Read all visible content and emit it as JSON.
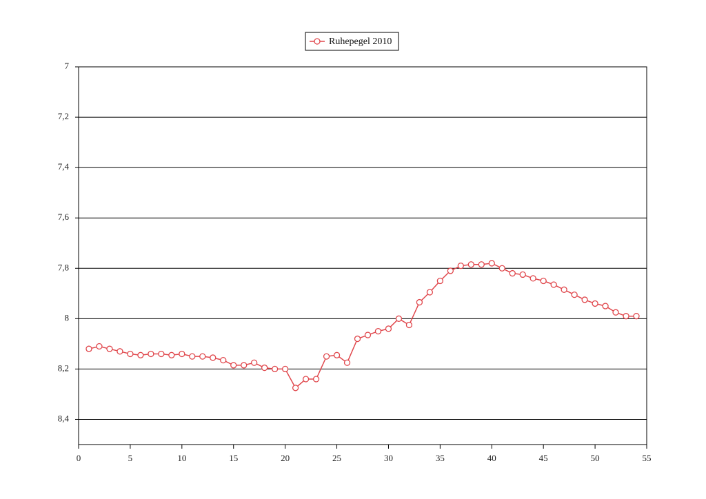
{
  "chart_data": {
    "type": "line",
    "title": "",
    "xlabel": "",
    "ylabel": "",
    "xlim": [
      0,
      55
    ],
    "ylim": [
      7,
      8.5
    ],
    "y_inverted": true,
    "grid": "horizontal",
    "legend": "top-center",
    "x_ticks": [
      0,
      5,
      10,
      15,
      20,
      25,
      30,
      35,
      40,
      45,
      50,
      55
    ],
    "x_tick_labels": [
      "0",
      "5",
      "10",
      "15",
      "20",
      "25",
      "30",
      "35",
      "40",
      "45",
      "50",
      "55"
    ],
    "y_ticks": [
      7,
      7.2,
      7.4,
      7.6,
      7.8,
      8,
      8.2,
      8.4
    ],
    "y_tick_labels": [
      "7",
      "7,2",
      "7,4",
      "7,6",
      "7,8",
      "8",
      "8,2",
      "8,4"
    ],
    "series": [
      {
        "name": "Ruhepegel 2010",
        "color": "#e0474c",
        "marker": "open-circle",
        "x": [
          1,
          2,
          3,
          4,
          5,
          6,
          7,
          8,
          9,
          10,
          11,
          12,
          13,
          14,
          15,
          16,
          17,
          18,
          19,
          20,
          21,
          22,
          23,
          24,
          25,
          26,
          27,
          28,
          29,
          30,
          31,
          32,
          33,
          34,
          35,
          36,
          37,
          38,
          39,
          40,
          41,
          42,
          43,
          44,
          45,
          46,
          47,
          48,
          49,
          50,
          51,
          52,
          53,
          54
        ],
        "y": [
          8.12,
          8.11,
          8.12,
          8.13,
          8.14,
          8.145,
          8.14,
          8.14,
          8.145,
          8.14,
          8.15,
          8.15,
          8.155,
          8.165,
          8.185,
          8.185,
          8.175,
          8.195,
          8.2,
          8.2,
          8.275,
          8.24,
          8.24,
          8.15,
          8.145,
          8.175,
          8.08,
          8.065,
          8.05,
          8.04,
          8.0,
          8.025,
          7.935,
          7.895,
          7.85,
          7.81,
          7.79,
          7.785,
          7.785,
          7.78,
          7.8,
          7.82,
          7.825,
          7.84,
          7.85,
          7.865,
          7.885,
          7.905,
          7.925,
          7.94,
          7.95,
          7.975,
          7.99,
          7.99
        ]
      }
    ]
  }
}
